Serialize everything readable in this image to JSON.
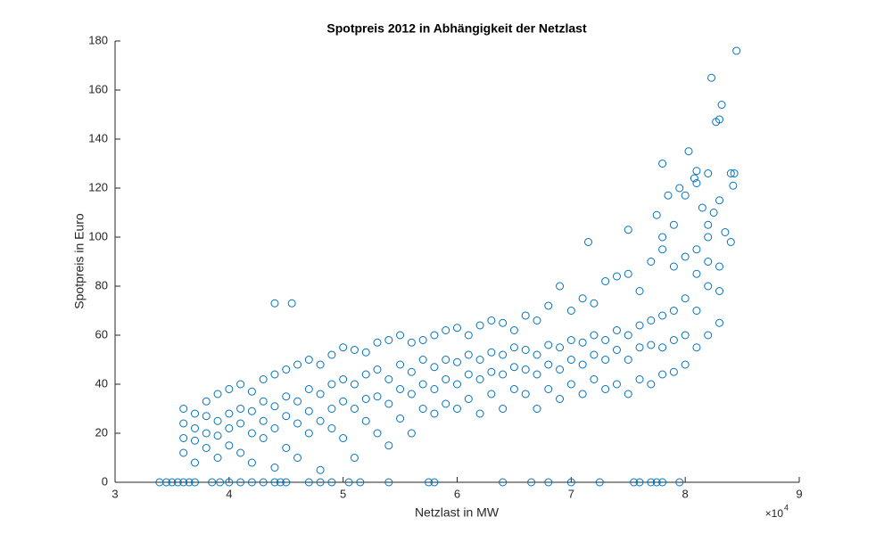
{
  "chart_data": {
    "type": "scatter",
    "title": "Spotpreis 2012 in Abhängigkeit der Netzlast",
    "x_label": "Netzlast in MW",
    "y_label": "Spotpreis in Euro",
    "x_exponent_base": "×10",
    "x_exponent_power": "4",
    "xlim": [
      30000,
      90000
    ],
    "ylim": [
      0,
      180
    ],
    "xticks": [
      {
        "value": 30000,
        "label": "3"
      },
      {
        "value": 40000,
        "label": "4"
      },
      {
        "value": 50000,
        "label": "5"
      },
      {
        "value": 60000,
        "label": "6"
      },
      {
        "value": 70000,
        "label": "7"
      },
      {
        "value": 80000,
        "label": "8"
      },
      {
        "value": 90000,
        "label": "9"
      }
    ],
    "yticks": [
      0,
      20,
      40,
      60,
      80,
      100,
      120,
      140,
      160,
      180
    ],
    "grid": false,
    "series": [
      {
        "name": null,
        "color": "#0072BD",
        "x": [
          33900,
          34500,
          35000,
          35500,
          36000,
          36500,
          37000,
          38500,
          39200,
          40000,
          41000,
          42000,
          43000,
          44000,
          44500,
          45000,
          47000,
          48000,
          49000,
          50500,
          51500,
          54000,
          57500,
          58000,
          64000,
          66500,
          68000,
          70000,
          72500,
          75500,
          76000,
          77000,
          77500,
          78000,
          79500,
          44000,
          45500,
          84500,
          82300,
          83200,
          83000,
          82700,
          80300,
          78000,
          81000,
          80800,
          81000,
          82000,
          84000,
          84300,
          84200,
          79500,
          80000,
          78500,
          83000,
          82500,
          81500,
          77500,
          75000,
          71500,
          79000,
          84000,
          83500,
          82000,
          78000,
          36000,
          36000,
          36000,
          36000,
          37000,
          37000,
          37000,
          37000,
          38000,
          38000,
          38000,
          38000,
          39000,
          39000,
          39000,
          39000,
          40000,
          40000,
          40000,
          40000,
          41000,
          41000,
          41000,
          41000,
          42000,
          42000,
          42000,
          42000,
          43000,
          43000,
          43000,
          43000,
          44000,
          44000,
          44000,
          44000,
          45000,
          45000,
          45000,
          45000,
          46000,
          46000,
          46000,
          46000,
          47000,
          47000,
          47000,
          47000,
          48000,
          48000,
          48000,
          48000,
          49000,
          49000,
          49000,
          49000,
          50000,
          50000,
          50000,
          50000,
          51000,
          51000,
          51000,
          51000,
          52000,
          52000,
          52000,
          52000,
          53000,
          53000,
          53000,
          53000,
          54000,
          54000,
          54000,
          54000,
          55000,
          55000,
          55000,
          55000,
          56000,
          56000,
          56000,
          56000,
          57000,
          57000,
          57000,
          57000,
          58000,
          58000,
          58000,
          58000,
          59000,
          59000,
          59000,
          59000,
          60000,
          60000,
          60000,
          60000,
          61000,
          61000,
          61000,
          61000,
          62000,
          62000,
          62000,
          62000,
          63000,
          63000,
          63000,
          63000,
          64000,
          64000,
          64000,
          64000,
          65000,
          65000,
          65000,
          65000,
          66000,
          66000,
          66000,
          66000,
          67000,
          67000,
          67000,
          67000,
          68000,
          68000,
          68000,
          68000,
          69000,
          69000,
          69000,
          69000,
          70000,
          70000,
          70000,
          70000,
          71000,
          71000,
          71000,
          71000,
          72000,
          72000,
          72000,
          72000,
          73000,
          73000,
          73000,
          73000,
          74000,
          74000,
          74000,
          74000,
          75000,
          75000,
          75000,
          75000,
          76000,
          76000,
          76000,
          76000,
          77000,
          77000,
          77000,
          77000,
          78000,
          78000,
          78000,
          78000,
          79000,
          79000,
          79000,
          79000,
          80000,
          80000,
          80000,
          80000,
          81000,
          81000,
          81000,
          81000,
          82000,
          82000,
          82000,
          82000,
          83000,
          83000,
          83000
        ],
        "values": [
          0,
          0,
          0,
          0,
          0,
          0,
          0,
          0,
          0,
          0,
          0,
          0,
          0,
          0,
          0,
          0,
          0,
          0,
          0,
          0,
          0,
          0,
          0,
          0,
          0,
          0,
          0,
          0,
          0,
          0,
          0,
          0,
          0,
          0,
          0,
          73,
          73,
          176,
          165,
          154,
          148,
          147,
          135,
          130,
          127,
          124,
          122,
          126,
          126,
          126,
          121,
          120,
          117,
          117,
          115,
          110,
          112,
          109,
          103,
          98,
          105,
          98,
          102,
          100,
          95,
          12,
          18,
          24,
          30,
          8,
          17,
          22,
          28,
          14,
          20,
          27,
          33,
          10,
          19,
          25,
          36,
          15,
          22,
          28,
          38,
          12,
          24,
          30,
          40,
          8,
          20,
          29,
          37,
          18,
          25,
          33,
          42,
          6,
          22,
          31,
          44,
          14,
          27,
          35,
          46,
          10,
          24,
          33,
          48,
          20,
          29,
          38,
          50,
          5,
          25,
          36,
          48,
          22,
          30,
          40,
          52,
          18,
          33,
          42,
          55,
          10,
          30,
          40,
          54,
          25,
          34,
          44,
          53,
          20,
          35,
          46,
          57,
          15,
          32,
          42,
          58,
          26,
          38,
          48,
          60,
          20,
          36,
          45,
          57,
          30,
          40,
          50,
          58,
          28,
          38,
          47,
          60,
          32,
          42,
          50,
          62,
          30,
          40,
          49,
          63,
          34,
          44,
          52,
          60,
          28,
          42,
          50,
          64,
          36,
          45,
          53,
          66,
          30,
          44,
          52,
          65,
          38,
          47,
          55,
          62,
          36,
          46,
          54,
          68,
          30,
          44,
          52,
          66,
          38,
          48,
          56,
          72,
          34,
          46,
          55,
          80,
          40,
          50,
          58,
          70,
          36,
          48,
          57,
          75,
          42,
          52,
          60,
          73,
          38,
          50,
          58,
          82,
          40,
          54,
          62,
          84,
          36,
          50,
          60,
          85,
          42,
          55,
          64,
          78,
          40,
          56,
          66,
          90,
          44,
          55,
          68,
          100,
          45,
          58,
          70,
          88,
          48,
          60,
          75,
          92,
          55,
          70,
          85,
          95,
          60,
          80,
          90,
          105,
          65,
          78,
          88
        ]
      }
    ]
  }
}
